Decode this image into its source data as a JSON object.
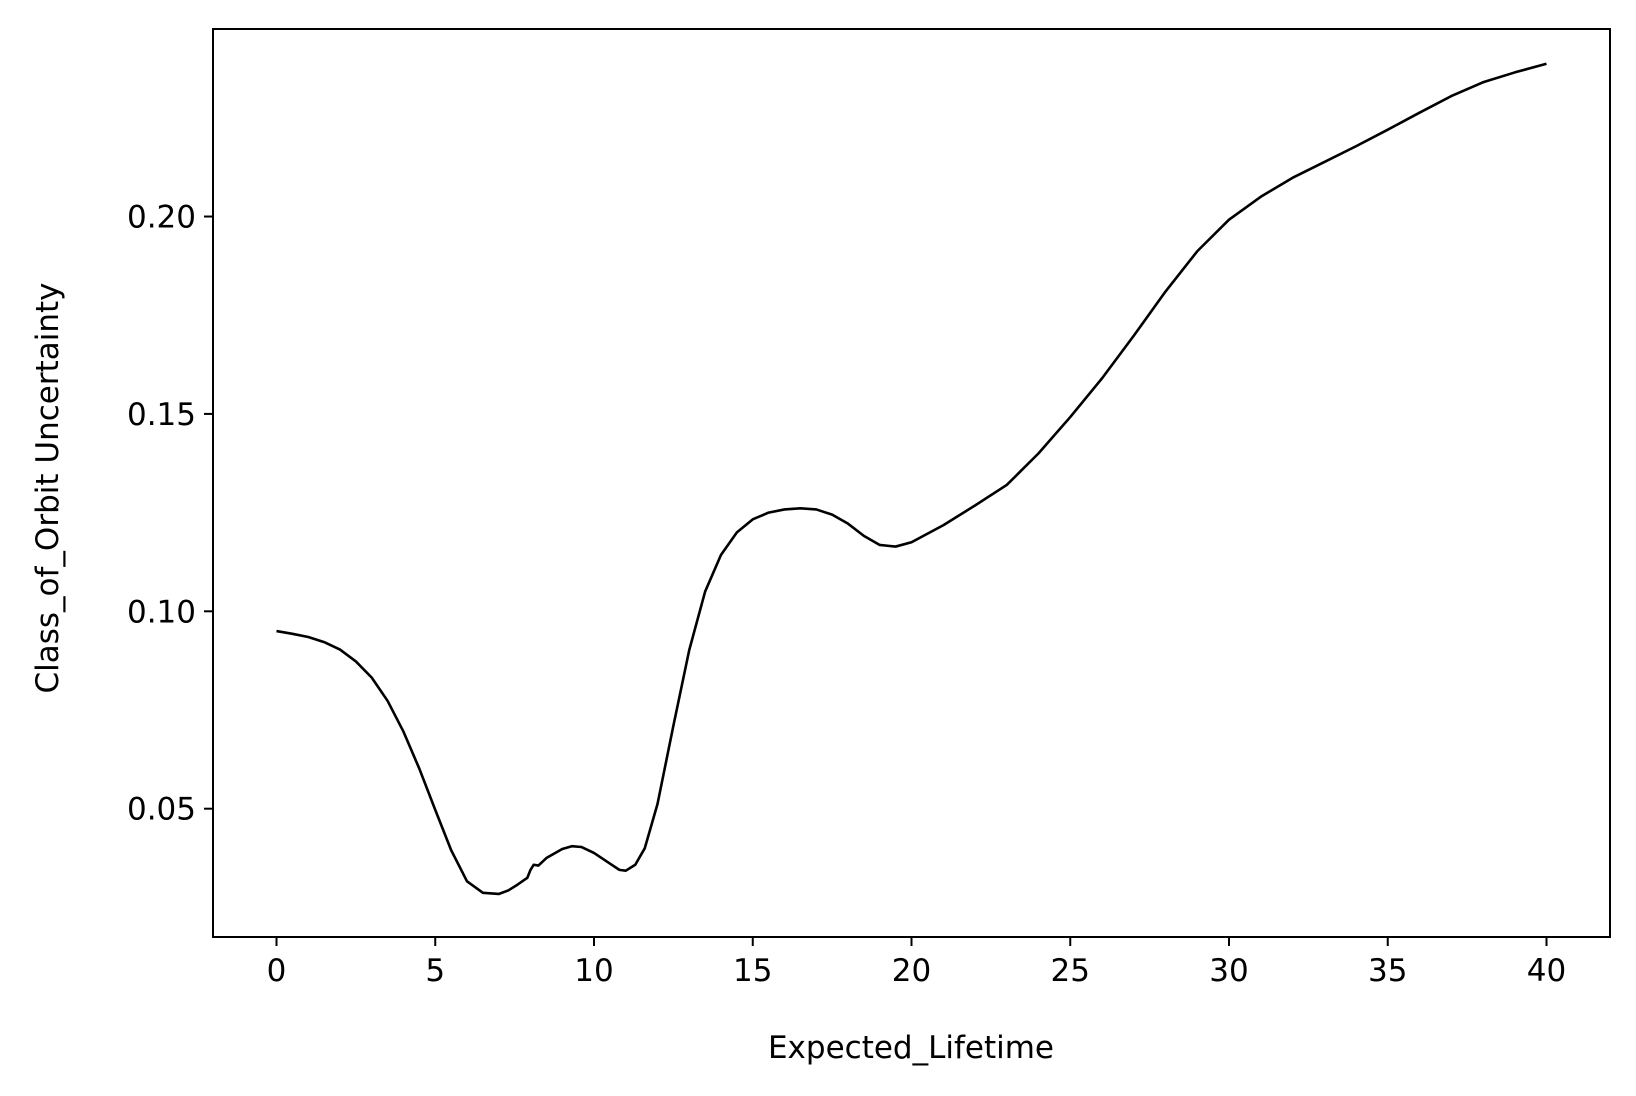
{
  "chart_data": {
    "type": "line",
    "title": "",
    "xlabel": "Expected_Lifetime",
    "ylabel": "Class_of_Orbit Uncertainty",
    "xlim": [
      -2,
      42
    ],
    "ylim": [
      0.0175,
      0.2475
    ],
    "xticks": [
      0,
      5,
      10,
      15,
      20,
      25,
      30,
      35,
      40
    ],
    "xtick_labels": [
      "0",
      "5",
      "10",
      "15",
      "20",
      "25",
      "30",
      "35",
      "40"
    ],
    "yticks": [
      0.05,
      0.1,
      0.15,
      0.2
    ],
    "ytick_labels": [
      "0.05",
      "0.10",
      "0.15",
      "0.20"
    ],
    "grid": false,
    "line_color": "#000000",
    "series": [
      {
        "x": [
          0,
          0.5,
          1.0,
          1.5,
          2.0,
          2.5,
          3.0,
          3.5,
          4.0,
          4.5,
          5.0,
          5.5,
          6.0,
          6.5,
          7.0,
          7.3,
          7.6,
          7.9,
          8.0,
          8.1,
          8.25,
          8.5,
          9.0,
          9.3,
          9.6,
          10.0,
          10.5,
          10.8,
          11.0,
          11.3,
          11.6,
          12.0,
          12.5,
          13.0,
          13.5,
          14.0,
          14.5,
          15.0,
          15.5,
          16.0,
          16.5,
          17.0,
          17.5,
          18.0,
          18.5,
          19.0,
          19.5,
          20.0,
          21.0,
          22.0,
          23.0,
          24.0,
          25.0,
          26.0,
          27.0,
          28.0,
          29.0,
          30.0,
          31.0,
          32.0,
          33.0,
          34.0,
          35.0,
          36.0,
          37.0,
          38.0,
          39.0,
          40.0
        ],
        "y": [
          0.095,
          0.0943,
          0.0935,
          0.0922,
          0.0903,
          0.0873,
          0.0832,
          0.0773,
          0.0695,
          0.0601,
          0.0497,
          0.0395,
          0.0316,
          0.0287,
          0.0284,
          0.0293,
          0.0308,
          0.0325,
          0.0345,
          0.0358,
          0.0356,
          0.0375,
          0.0398,
          0.0405,
          0.0403,
          0.0388,
          0.0361,
          0.0345,
          0.0343,
          0.0358,
          0.04,
          0.0512,
          0.071,
          0.0902,
          0.105,
          0.1143,
          0.12,
          0.1233,
          0.125,
          0.1258,
          0.1261,
          0.1258,
          0.1245,
          0.1222,
          0.1191,
          0.1168,
          0.1164,
          0.1175,
          0.1218,
          0.1268,
          0.132,
          0.14,
          0.1492,
          0.159,
          0.1698,
          0.181,
          0.1912,
          0.1992,
          0.205,
          0.2098,
          0.2138,
          0.2178,
          0.222,
          0.2263,
          0.2305,
          0.234,
          0.2365,
          0.2387
        ]
      }
    ]
  }
}
